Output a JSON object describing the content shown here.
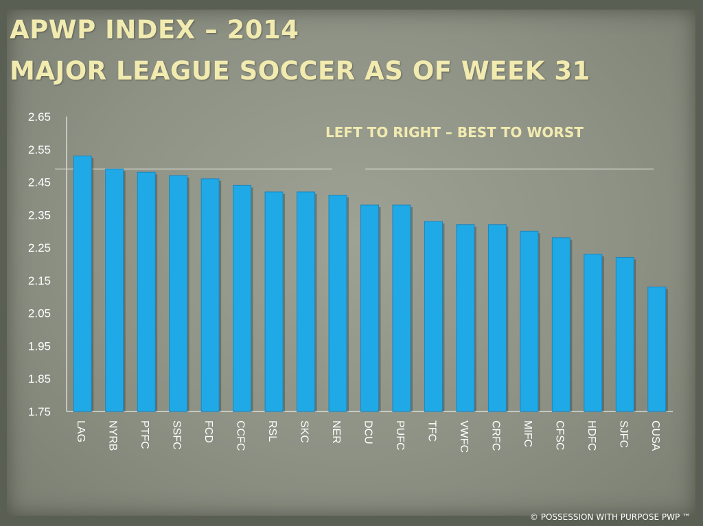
{
  "slide": {
    "title_line1": "APWP INDEX – 2014",
    "title_line2": "MAJOR LEAGUE SOCCER AS OF WEEK 31",
    "note": "LEFT TO RIGHT – BEST TO WORST",
    "footer": "© POSSESSION WITH PURPOSE  PWP ™"
  },
  "colors": {
    "bar": "#1fa9e6",
    "bar_edge": "#1a86c0",
    "axis": "#ffffff",
    "tick_label": "#ffffff",
    "title": "#f2ebb0"
  },
  "chart_data": {
    "type": "bar",
    "categories": [
      "LAG",
      "NYRB",
      "PTFC",
      "SSFC",
      "FCD",
      "CCFC",
      "RSL",
      "SKC",
      "NER",
      "DCU",
      "PUFC",
      "TFC",
      "VWFC",
      "CRFC",
      "MIFC",
      "CFSC",
      "HDFC",
      "SJFC",
      "CUSA"
    ],
    "values": [
      2.53,
      2.49,
      2.48,
      2.47,
      2.46,
      2.44,
      2.42,
      2.42,
      2.41,
      2.38,
      2.38,
      2.33,
      2.32,
      2.32,
      2.3,
      2.28,
      2.23,
      2.22,
      2.13
    ],
    "yticks": [
      "1.75",
      "1.85",
      "1.95",
      "2.05",
      "2.15",
      "2.25",
      "2.35",
      "2.45",
      "2.55",
      "2.65"
    ],
    "ylim": [
      1.75,
      2.65
    ],
    "reference_line": 2.49,
    "grid": false,
    "title": "",
    "xlabel": "",
    "ylabel": ""
  }
}
